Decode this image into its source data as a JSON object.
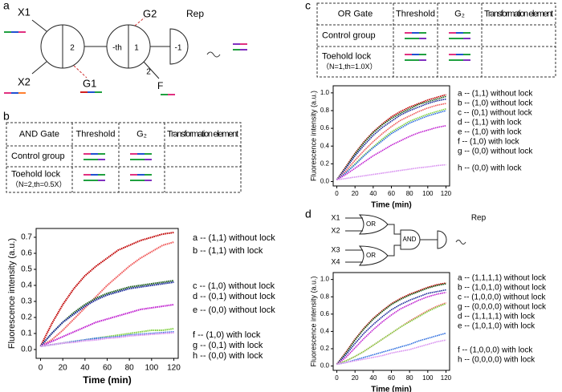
{
  "panel_labels": [
    "a",
    "b",
    "c",
    "d"
  ],
  "diagram_a": {
    "inputs": [
      "X1",
      "X2"
    ],
    "gates": [
      "G1",
      "G2"
    ],
    "output": "Rep",
    "fuel": "F",
    "weights": [
      "2",
      "-th",
      "1",
      "2",
      "-1"
    ]
  },
  "table_b": {
    "header": [
      "AND Gate",
      "Threshold",
      "G₂",
      "Transformation element"
    ],
    "rows": [
      [
        "Control group"
      ],
      [
        "Toehold lock",
        "（N=2,th=0.5X）"
      ]
    ]
  },
  "table_c": {
    "header": [
      "OR Gate",
      "Threshold",
      "G₂",
      "Transformation element"
    ],
    "rows": [
      [
        "Control group"
      ],
      [
        "Toehold lock",
        "（N=1,th=1.0X）"
      ]
    ]
  },
  "diagram_d": {
    "inputs": [
      "X1",
      "X2",
      "X3",
      "X4"
    ],
    "gates": [
      "OR",
      "OR",
      "AND"
    ],
    "output": "Rep"
  },
  "chart_data": [
    {
      "type": "line",
      "xlabel": "Time (min)",
      "ylabel": "Fluorescence intensity (a.u.)",
      "x": [
        0,
        10,
        20,
        30,
        40,
        50,
        60,
        70,
        80,
        90,
        100,
        110,
        120
      ],
      "xlim": [
        -4,
        124
      ],
      "xticks": [
        0,
        20,
        40,
        60,
        80,
        100,
        120
      ],
      "ylim": [
        -0.055,
        0.755
      ],
      "yticks": [
        {
          "value": 0,
          "label": "0.0"
        },
        0.1,
        0.2,
        0.3,
        0.4,
        0.5,
        0.6,
        0.7
      ],
      "series": [
        {
          "name": "a -- (1,1) without lock",
          "color": "#c00000",
          "values": [
            0.02,
            0.16,
            0.28,
            0.38,
            0.46,
            0.52,
            0.57,
            0.62,
            0.65,
            0.68,
            0.7,
            0.72,
            0.73
          ]
        },
        {
          "name": "b -- (1,1) with lock",
          "color": "#f05a5a",
          "values": [
            0.02,
            0.06,
            0.12,
            0.19,
            0.26,
            0.33,
            0.4,
            0.46,
            0.52,
            0.57,
            0.61,
            0.65,
            0.67
          ]
        },
        {
          "name": "c -- (1,0) without lock",
          "color": "#1a5c1a",
          "values": [
            0.02,
            0.1,
            0.17,
            0.23,
            0.28,
            0.32,
            0.35,
            0.37,
            0.39,
            0.4,
            0.41,
            0.42,
            0.43
          ]
        },
        {
          "name": "d -- (0,1) without lock",
          "color": "#1a2a9a",
          "values": [
            0.02,
            0.1,
            0.17,
            0.22,
            0.27,
            0.31,
            0.34,
            0.36,
            0.38,
            0.39,
            0.4,
            0.41,
            0.42
          ]
        },
        {
          "name": "e -- (0,0) without lock",
          "color": "#c020d0",
          "values": [
            0.02,
            0.05,
            0.08,
            0.11,
            0.14,
            0.17,
            0.19,
            0.21,
            0.23,
            0.25,
            0.26,
            0.27,
            0.28
          ]
        },
        {
          "name": "f -- (1,0) with lock",
          "color": "#80d040",
          "values": [
            0.02,
            0.03,
            0.04,
            0.05,
            0.06,
            0.07,
            0.08,
            0.09,
            0.1,
            0.11,
            0.12,
            0.12,
            0.13
          ]
        },
        {
          "name": "g -- (0,1) with lock",
          "color": "#3070e0",
          "values": [
            0.02,
            0.03,
            0.04,
            0.05,
            0.06,
            0.07,
            0.075,
            0.08,
            0.09,
            0.095,
            0.1,
            0.105,
            0.11
          ]
        },
        {
          "name": "h -- (0,0) with lock",
          "color": "#d890f0",
          "values": [
            0.02,
            0.03,
            0.04,
            0.045,
            0.055,
            0.06,
            0.07,
            0.075,
            0.085,
            0.09,
            0.095,
            0.1,
            0.105
          ]
        }
      ]
    },
    {
      "type": "line",
      "xlabel": "Time (min)",
      "ylabel": "Fluorescence intensity (a.u.)",
      "x": [
        0,
        10,
        20,
        30,
        40,
        50,
        60,
        70,
        80,
        90,
        100,
        110,
        120
      ],
      "xlim": [
        -4,
        124
      ],
      "xticks": [
        0,
        20,
        40,
        60,
        80,
        100,
        120
      ],
      "ylim": [
        -0.05,
        1.08
      ],
      "yticks": [
        {
          "value": 0,
          "label": "0.0"
        },
        0.2,
        0.4,
        0.6,
        0.8,
        {
          "value": 1,
          "label": "1.0"
        }
      ],
      "series": [
        {
          "name": "a -- (1,1) without lock",
          "color": "#c00000",
          "values": [
            0.02,
            0.17,
            0.32,
            0.45,
            0.56,
            0.65,
            0.73,
            0.79,
            0.84,
            0.88,
            0.92,
            0.95,
            0.98
          ]
        },
        {
          "name": "b -- (1,0) without lock",
          "color": "#1a5c1a",
          "values": [
            0.02,
            0.16,
            0.31,
            0.44,
            0.55,
            0.64,
            0.71,
            0.77,
            0.82,
            0.87,
            0.9,
            0.93,
            0.96
          ]
        },
        {
          "name": "c -- (0,1) without lock",
          "color": "#1a2a9a",
          "values": [
            0.02,
            0.15,
            0.29,
            0.41,
            0.52,
            0.61,
            0.68,
            0.75,
            0.8,
            0.84,
            0.88,
            0.91,
            0.93
          ]
        },
        {
          "name": "d -- (1,1) with lock",
          "color": "#f05a5a",
          "values": [
            0.02,
            0.12,
            0.24,
            0.35,
            0.45,
            0.54,
            0.62,
            0.69,
            0.74,
            0.79,
            0.83,
            0.86,
            0.88
          ]
        },
        {
          "name": "e -- (1,0) with lock",
          "color": "#80d040",
          "values": [
            0.02,
            0.1,
            0.2,
            0.3,
            0.39,
            0.48,
            0.56,
            0.62,
            0.68,
            0.72,
            0.76,
            0.79,
            0.82
          ]
        },
        {
          "name": "f -- (1,0) with lock",
          "color": "#3070e0",
          "values": [
            0.02,
            0.1,
            0.19,
            0.29,
            0.38,
            0.46,
            0.54,
            0.6,
            0.66,
            0.7,
            0.74,
            0.77,
            0.8
          ]
        },
        {
          "name": "g -- (0,0) without lock",
          "color": "#c020d0",
          "values": [
            0.02,
            0.08,
            0.15,
            0.22,
            0.29,
            0.35,
            0.41,
            0.46,
            0.51,
            0.55,
            0.58,
            0.61,
            0.63
          ]
        },
        {
          "name": "h -- (0,0) with lock",
          "color": "#d890f0",
          "values": [
            0.02,
            0.035,
            0.05,
            0.065,
            0.08,
            0.095,
            0.11,
            0.125,
            0.14,
            0.155,
            0.165,
            0.18,
            0.19
          ]
        }
      ]
    },
    {
      "type": "line",
      "xlabel": "Time (min)",
      "ylabel": "Fluorescence intensity (a.u.)",
      "x": [
        0,
        10,
        20,
        30,
        40,
        50,
        60,
        70,
        80,
        90,
        100,
        110,
        120
      ],
      "xlim": [
        -4,
        124
      ],
      "xticks": [
        0,
        20,
        40,
        60,
        80,
        100,
        120
      ],
      "ylim": [
        -0.05,
        1.08
      ],
      "yticks": [
        {
          "value": 0,
          "label": "0.0"
        },
        0.2,
        0.4,
        0.6,
        0.8,
        {
          "value": 1,
          "label": "1.0"
        }
      ],
      "series": [
        {
          "name": "a -- (1,1,1,1) without lock",
          "color": "#c00000",
          "values": [
            0.02,
            0.16,
            0.31,
            0.44,
            0.55,
            0.64,
            0.72,
            0.78,
            0.83,
            0.87,
            0.91,
            0.94,
            0.96
          ]
        },
        {
          "name": "b -- (1,0,1,0) without lock",
          "color": "#1a5c1a",
          "values": [
            0.02,
            0.15,
            0.3,
            0.43,
            0.54,
            0.63,
            0.71,
            0.77,
            0.82,
            0.86,
            0.9,
            0.93,
            0.95
          ]
        },
        {
          "name": "c -- (1,0,0,0) without lock",
          "color": "#1a2a9a",
          "values": [
            0.02,
            0.13,
            0.26,
            0.38,
            0.48,
            0.57,
            0.65,
            0.71,
            0.76,
            0.8,
            0.84,
            0.86,
            0.88
          ]
        },
        {
          "name": "g -- (0,0,0,0) without lock",
          "color": "#c020d0",
          "values": [
            0.02,
            0.1,
            0.21,
            0.32,
            0.42,
            0.51,
            0.59,
            0.66,
            0.71,
            0.76,
            0.8,
            0.83,
            0.85
          ]
        },
        {
          "name": "d -- (1,1,1,1) with lock",
          "color": "#f05a5a",
          "values": [
            0.02,
            0.06,
            0.11,
            0.17,
            0.24,
            0.31,
            0.38,
            0.45,
            0.52,
            0.58,
            0.64,
            0.69,
            0.73
          ]
        },
        {
          "name": "e -- (1,0,1,0) with lock",
          "color": "#80d040",
          "values": [
            0.02,
            0.06,
            0.11,
            0.17,
            0.24,
            0.31,
            0.38,
            0.45,
            0.51,
            0.57,
            0.63,
            0.68,
            0.72
          ]
        },
        {
          "name": "f -- (1,0,0,0) with lock",
          "color": "#3070e0",
          "values": [
            0.02,
            0.04,
            0.07,
            0.1,
            0.13,
            0.16,
            0.19,
            0.22,
            0.25,
            0.29,
            0.32,
            0.35,
            0.38
          ]
        },
        {
          "name": "h -- (0,0,0,0) with lock",
          "color": "#d890f0",
          "values": [
            0.02,
            0.04,
            0.06,
            0.08,
            0.1,
            0.12,
            0.15,
            0.17,
            0.19,
            0.22,
            0.25,
            0.28,
            0.3
          ]
        }
      ]
    }
  ]
}
